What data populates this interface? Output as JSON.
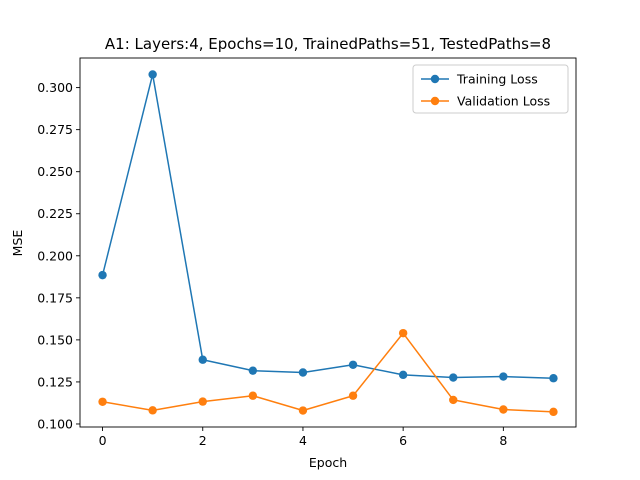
{
  "chart_data": {
    "type": "line",
    "title": "A1: Layers:4, Epochs=10, TrainedPaths=51, TestedPaths=8",
    "xlabel": "Epoch",
    "ylabel": "MSE",
    "x": [
      0,
      1,
      2,
      3,
      4,
      5,
      6,
      7,
      8,
      9
    ],
    "xlim": [
      -0.45,
      9.45
    ],
    "ylim": [
      0.0982,
      0.3176
    ],
    "xticks": [
      0,
      2,
      4,
      6,
      8
    ],
    "xtick_labels": [
      "0",
      "2",
      "4",
      "6",
      "8"
    ],
    "yticks": [
      0.1,
      0.125,
      0.15,
      0.175,
      0.2,
      0.225,
      0.25,
      0.275,
      0.3
    ],
    "ytick_labels": [
      "0.100",
      "0.125",
      "0.150",
      "0.175",
      "0.200",
      "0.225",
      "0.250",
      "0.275",
      "0.300"
    ],
    "grid": false,
    "legend_position": "top-right",
    "series": [
      {
        "name": "Training Loss",
        "color": "#1f77b4",
        "marker": "circle",
        "values": [
          0.1885,
          0.3078,
          0.1382,
          0.1317,
          0.1306,
          0.1352,
          0.1292,
          0.1276,
          0.1282,
          0.1272
        ]
      },
      {
        "name": "Validation Loss",
        "color": "#ff7f0e",
        "marker": "circle",
        "values": [
          0.1132,
          0.1081,
          0.1133,
          0.1168,
          0.108,
          0.1168,
          0.154,
          0.1143,
          0.1086,
          0.1072
        ]
      }
    ]
  }
}
